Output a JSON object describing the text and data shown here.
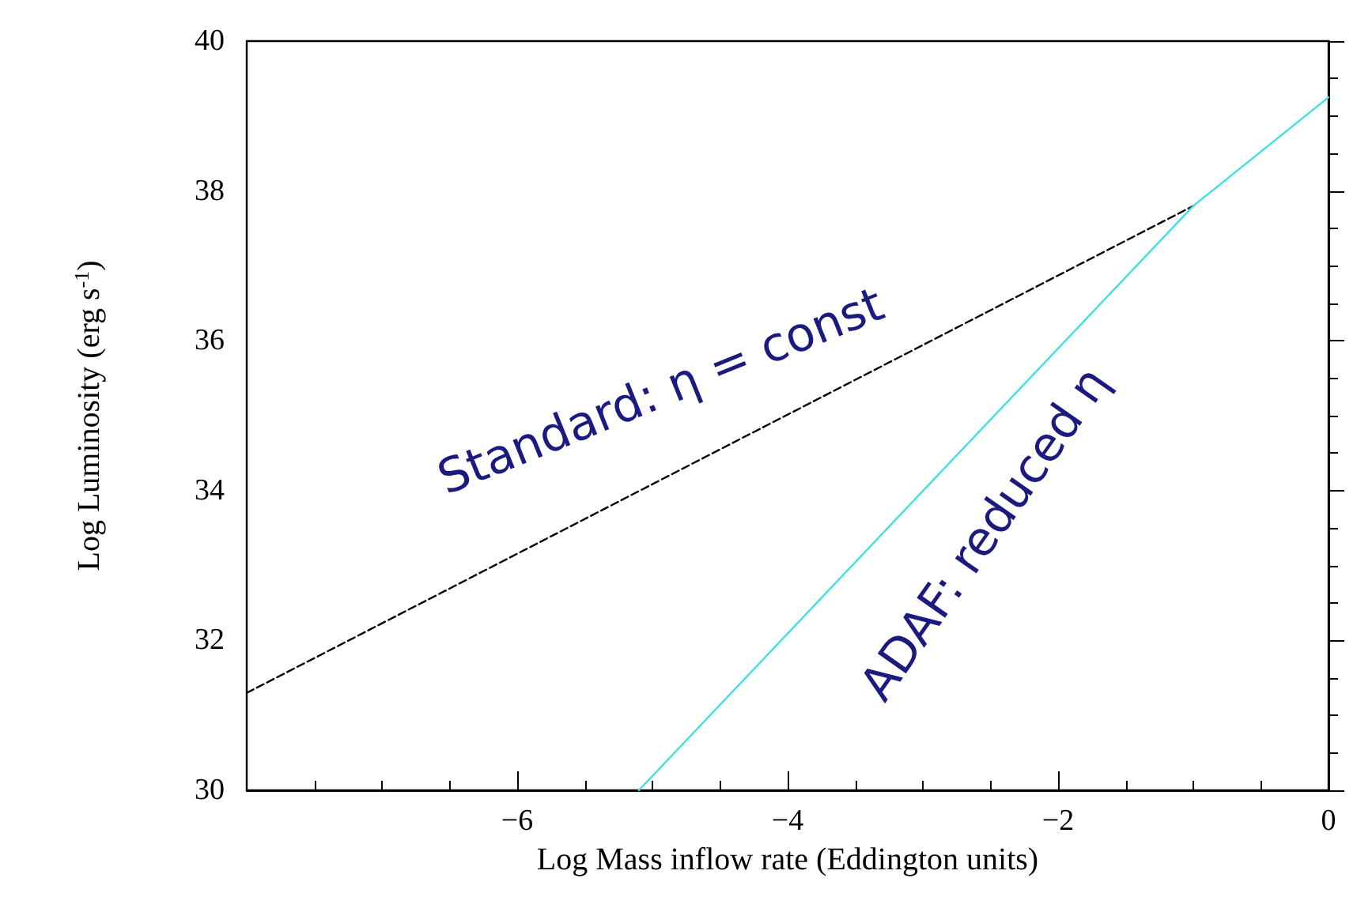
{
  "chart_data": {
    "type": "line",
    "xlabel": "Log Mass inflow rate (Eddington units)",
    "ylabel": "Log Luminosity (erg s$^{-1}$)",
    "xlim": [
      -8,
      0
    ],
    "xticks": [
      -6,
      -4,
      -2,
      0
    ],
    "ylim": [
      30,
      40
    ],
    "yticks": [
      30,
      32,
      34,
      36,
      38,
      40
    ],
    "grid": false,
    "series": [
      {
        "color": "#000000",
        "line_style": "dashed",
        "x": [
          -8,
          -1
        ],
        "values": [
          31.3,
          37.8
        ]
      },
      {
        "color": "#40e0e0",
        "line_style": "solid",
        "x": [
          -5.1,
          -1,
          0
        ],
        "values": [
          30,
          37.8,
          39.25
        ]
      }
    ],
    "annotations": [
      "Standard: η = const",
      "ADAF: reduced η"
    ]
  }
}
